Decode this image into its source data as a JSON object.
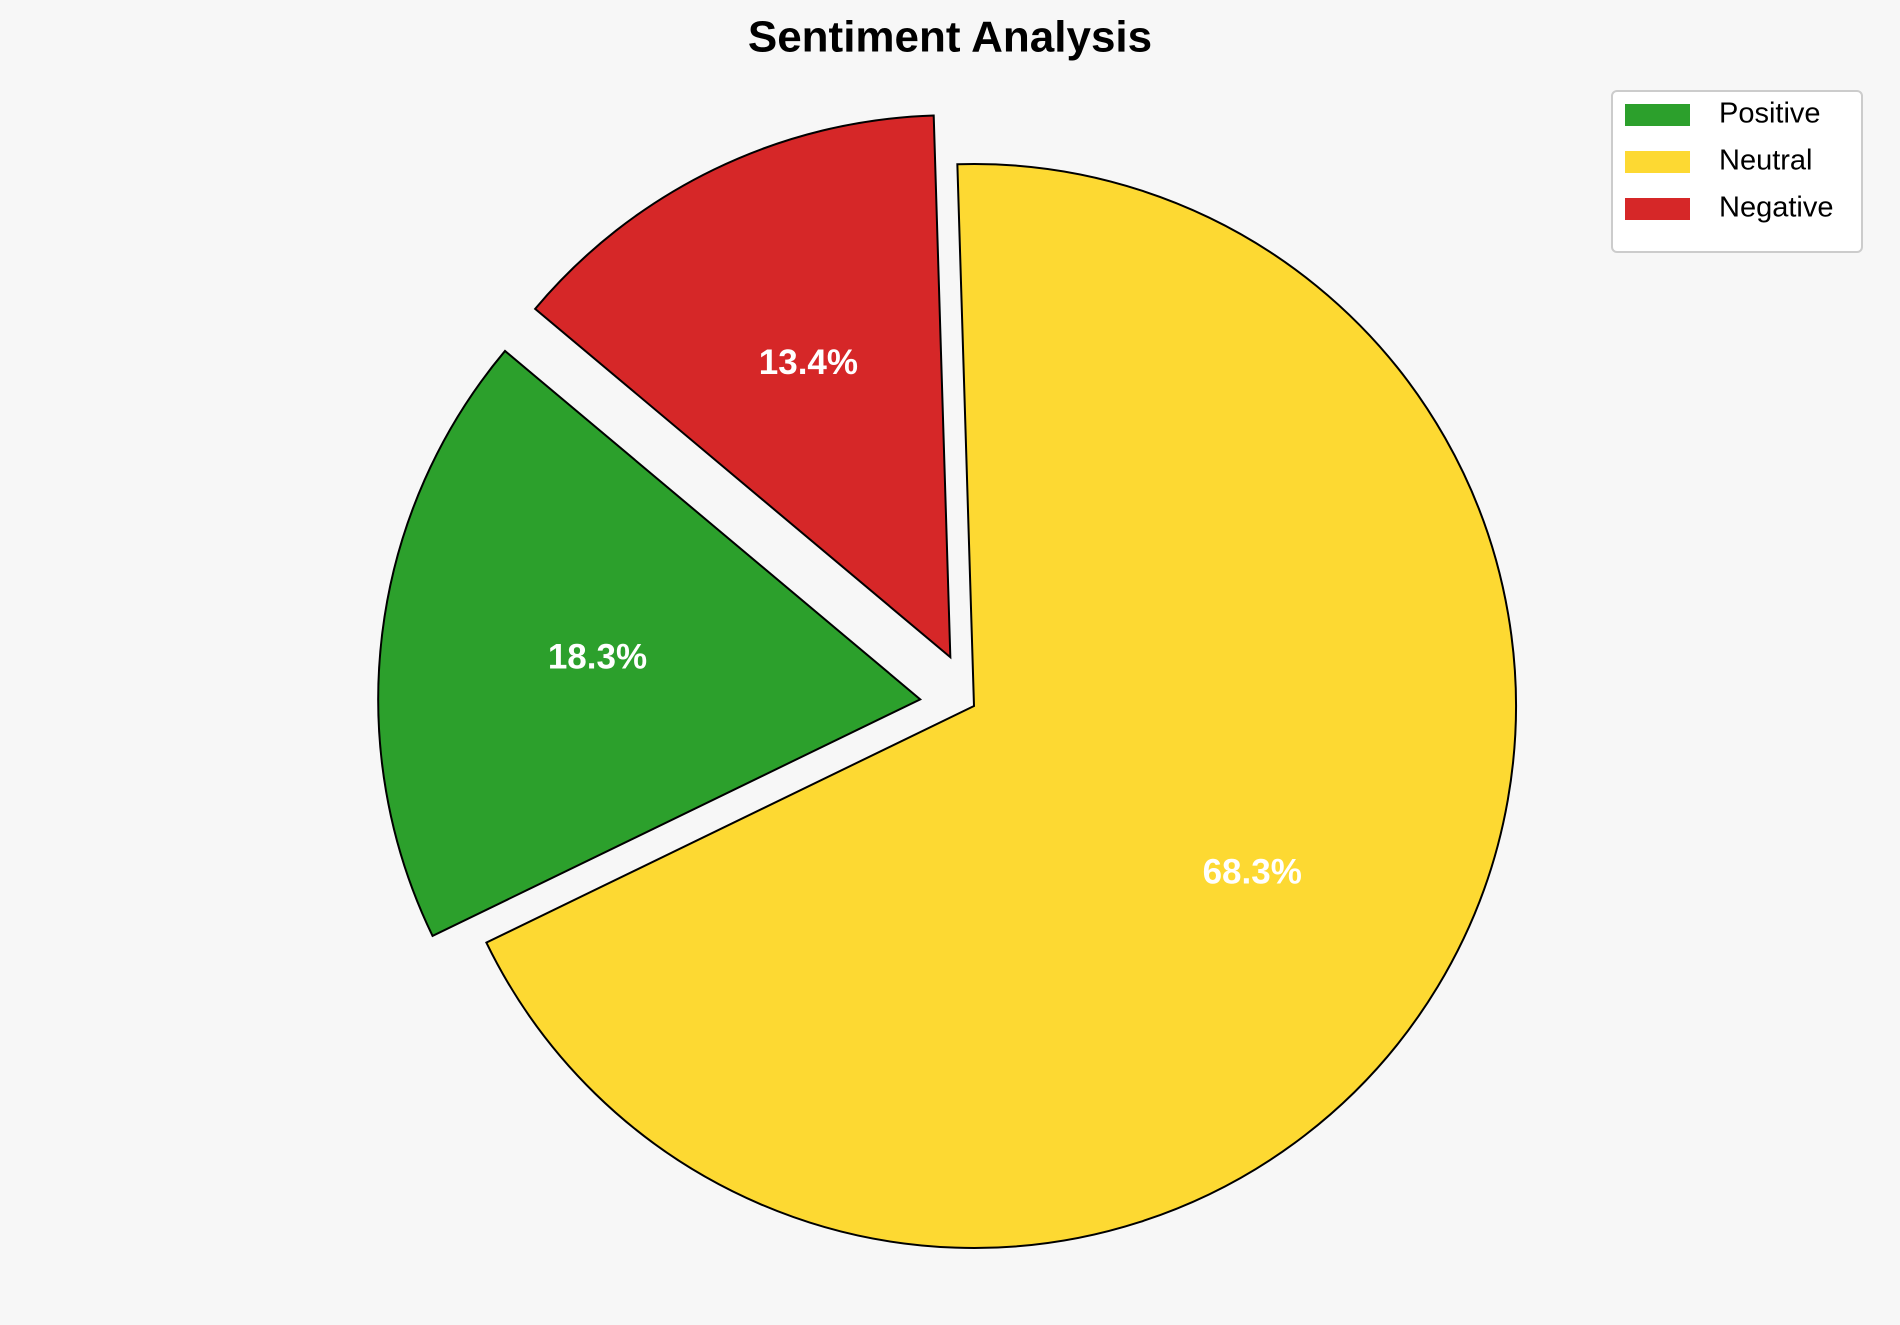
{
  "chart_data": {
    "type": "pie",
    "title": "Sentiment Analysis",
    "categories": [
      "Positive",
      "Neutral",
      "Negative"
    ],
    "values": [
      18.3,
      68.3,
      13.4
    ],
    "value_labels": [
      "18.3%",
      "68.3%",
      "13.4%"
    ],
    "colors": [
      "#2ca02c",
      "#fdd932",
      "#d62728"
    ],
    "explode": [
      0.1,
      0,
      0.1
    ],
    "legend": "upper right"
  }
}
